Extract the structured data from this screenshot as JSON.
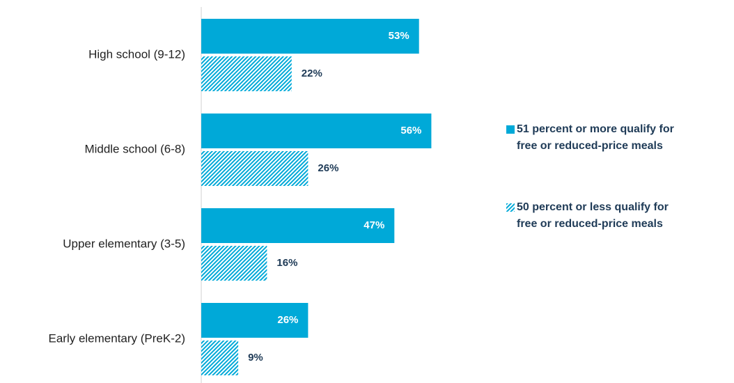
{
  "chart_data": {
    "type": "bar",
    "orientation": "horizontal",
    "categories": [
      "High school (9-12)",
      "Middle school (6-8)",
      "Upper elementary (3-5)",
      "Early elementary (PreK-2)"
    ],
    "series": [
      {
        "name": "51 percent or more qualify for free or reduced-price meals",
        "color": "#00a9d8",
        "pattern": "solid",
        "values": [
          53,
          56,
          47,
          26
        ],
        "value_labels": [
          "53%",
          "56%",
          "47%",
          "26%"
        ]
      },
      {
        "name": "50 percent or less qualify for free or reduced-price meals",
        "color": "#00a9d8",
        "pattern": "hatch",
        "values": [
          22,
          26,
          16,
          9
        ],
        "value_labels": [
          "22%",
          "26%",
          "16%",
          "9%"
        ]
      }
    ],
    "legend": "right"
  }
}
